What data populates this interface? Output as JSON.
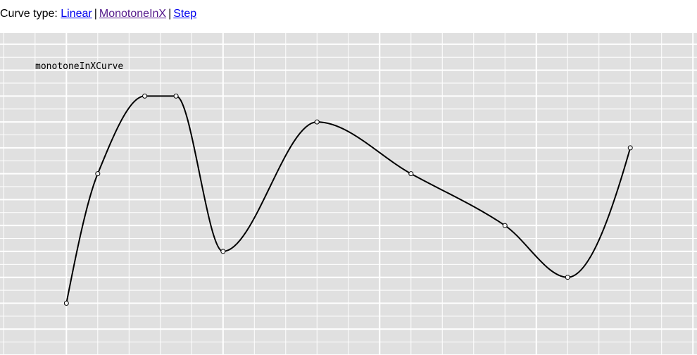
{
  "header": {
    "label": "Curve type:",
    "links": [
      "Linear",
      "MonotoneInX",
      "Step"
    ],
    "separator": "|"
  },
  "chart_data": {
    "type": "line",
    "title": "monotoneInXCurve",
    "grid": true,
    "x": [
      0,
      1,
      2.5,
      3.5,
      5,
      8,
      11,
      14,
      16,
      18
    ],
    "y": [
      1,
      6,
      9,
      9,
      3,
      8,
      6,
      4,
      2,
      7
    ],
    "xlim": [
      -2.12,
      20.13
    ],
    "ylim": [
      -1.0,
      11.43
    ],
    "colors": {
      "background": "#e0e0e0",
      "grid": "#ffffff",
      "line": "#000000",
      "point_fill": "#ffffff"
    }
  }
}
